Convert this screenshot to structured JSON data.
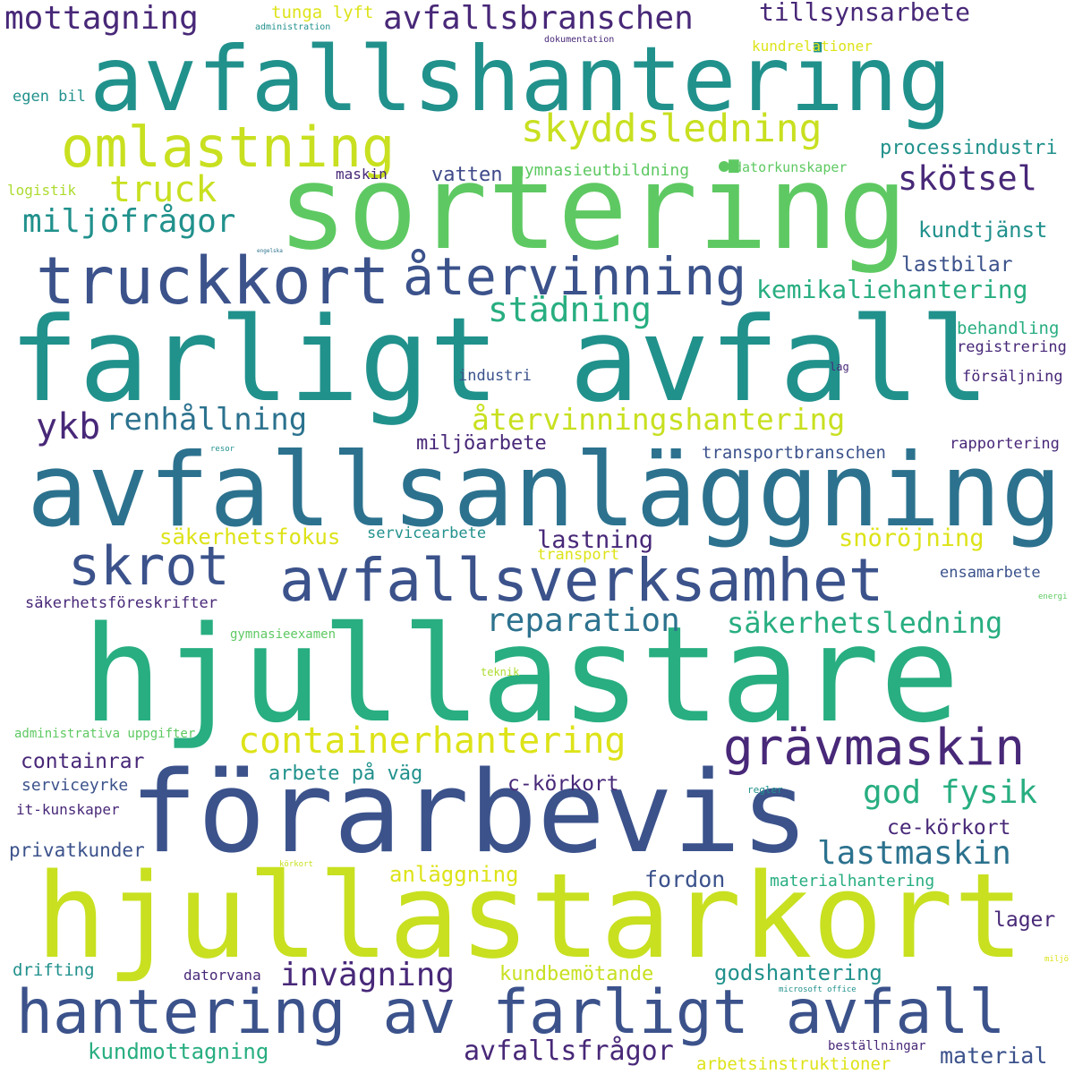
{
  "words": {
    "hjullastare": "hjullastare",
    "hjullastarkort": "hjullastarkort",
    "forarbevis": "förarbevis",
    "farligt_avfall": "farligt avfall",
    "avfallsanlaggning": "avfallsanläggning",
    "avfallshantering": "avfallshantering",
    "sortering": "sortering",
    "hantering_av_farligt_avfall": "hantering av farligt avfall",
    "truckkort": "truckkort",
    "avfallsverksamhet": "avfallsverksamhet",
    "omlastning": "omlastning",
    "atervinning": "återvinning",
    "skrot": "skrot",
    "gravmaskin": "grävmaskin",
    "containerhantering": "containerhantering",
    "skyddsledning": "skyddsledning",
    "avfallsbranschen": "avfallsbranschen",
    "mottagning": "mottagning",
    "tillsynsarbete": "tillsynsarbete",
    "truck": "truck",
    "miljofragor": "miljöfrågor",
    "skotsel": "skötsel",
    "stadning": "städning",
    "kemikaliehantering": "kemikaliehantering",
    "renhallning": "renhållning",
    "ykb": "ykb",
    "atervinningshantering": "återvinningshantering",
    "reparation": "reparation",
    "sakerhetsledning": "säkerhetsledning",
    "god_fysik": "god fysik",
    "lastmaskin": "lastmaskin",
    "invagning": "invägning",
    "avfallsfragor": "avfallsfrågor",
    "kundtjanst": "kundtjänst",
    "lastbilar": "lastbilar",
    "miljoarbete": "miljöarbete",
    "lastning": "lastning",
    "sakerhetsfokus": "säkerhetsfokus",
    "snorojning": "snöröjning",
    "processindustri": "processindustri",
    "gymnasieutbildning": "gymnasieutbildning",
    "datorkunskaper": "datorkunskaper",
    "vatten": "vatten",
    "maskin": "maskin",
    "tunga_lyft": "tunga lyft",
    "administration": "administration",
    "dokumentation": "dokumentation",
    "kundrelationer": "kundrelationer",
    "egen_bil": "egen bil",
    "logistik": "logistik",
    "engelska": "engelska",
    "behandling": "behandling",
    "registrering": "registrering",
    "lag": "lag",
    "industri": "industri",
    "forsaljning": "försäljning",
    "resor": "resor",
    "transportbranschen": "transportbranschen",
    "rapportering": "rapportering",
    "servicearbete": "servicearbete",
    "transport": "transport",
    "ensamarbete": "ensamarbete",
    "energi": "energi",
    "sakerhetsforeskrifter": "säkerhetsföreskrifter",
    "gymnasieexamen": "gymnasieexamen",
    "teknik": "teknik",
    "administrativa_uppgifter": "administrativa uppgifter",
    "regler": "regler",
    "containrar": "containrar",
    "arbete_pa_vag": "arbete på väg",
    "c_korkort": "c-körkort",
    "ce_korkort": "ce-körkort",
    "serviceyrke": "serviceyrke",
    "it_kunskaper": "it-kunskaper",
    "privatkunder": "privatkunder",
    "korkort": "körkort",
    "anlaggning": "anläggning",
    "fordon": "fordon",
    "materialhantering": "materialhantering",
    "lager": "lager",
    "drifting": "drifting",
    "datorvana": "datorvana",
    "kundbemotande": "kundbemötande",
    "godshantering": "godshantering",
    "microsoft_office": "microsoft office",
    "miljo": "miljö",
    "kundmottagning": "kundmottagning",
    "bestallningar": "beställningar",
    "material": "material",
    "arbetsinstruktioner": "arbetsinstruktioner"
  }
}
